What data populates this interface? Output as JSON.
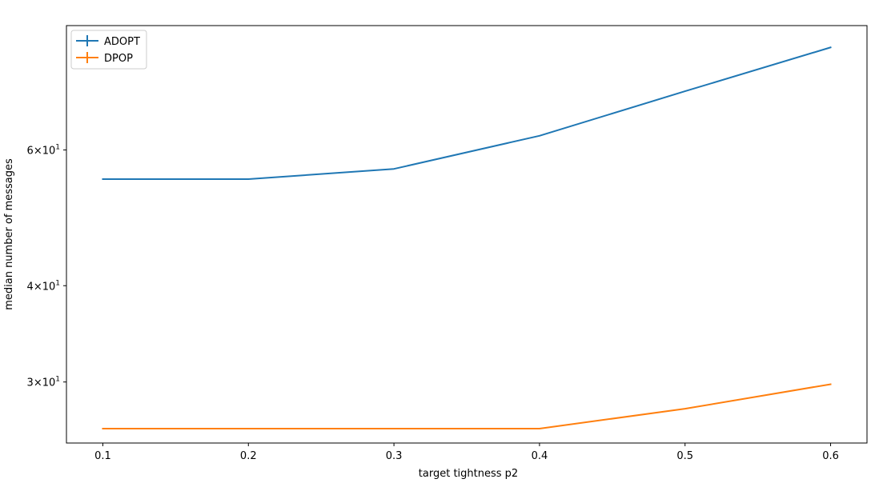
{
  "chart_data": {
    "type": "line",
    "xlabel": "target tightness p2",
    "ylabel": "median number of messages",
    "yscale": "log",
    "xlim": [
      0.075,
      0.625
    ],
    "ylim": [
      25.0,
      87.0
    ],
    "x_ticks": [
      "0.1",
      "0.2",
      "0.3",
      "0.4",
      "0.5",
      "0.6"
    ],
    "x_tick_values": [
      0.1,
      0.2,
      0.3,
      0.4,
      0.5,
      0.6
    ],
    "y_ticks": [
      {
        "value": 30,
        "base": "3",
        "exp": "1"
      },
      {
        "value": 40,
        "base": "4",
        "exp": "1"
      },
      {
        "value": 60,
        "base": "6",
        "exp": "1"
      }
    ],
    "x": [
      0.1,
      0.2,
      0.3,
      0.4,
      0.5,
      0.6
    ],
    "series": [
      {
        "name": "ADOPT",
        "color": "#1f77b4",
        "values": [
          55,
          55,
          56.7,
          62.6,
          71.5,
          81.5
        ]
      },
      {
        "name": "DPOP",
        "color": "#ff7f0e",
        "values": [
          26.1,
          26.1,
          26.1,
          26.1,
          27.7,
          29.8
        ]
      }
    ],
    "legend": "upper left",
    "grid": false
  }
}
